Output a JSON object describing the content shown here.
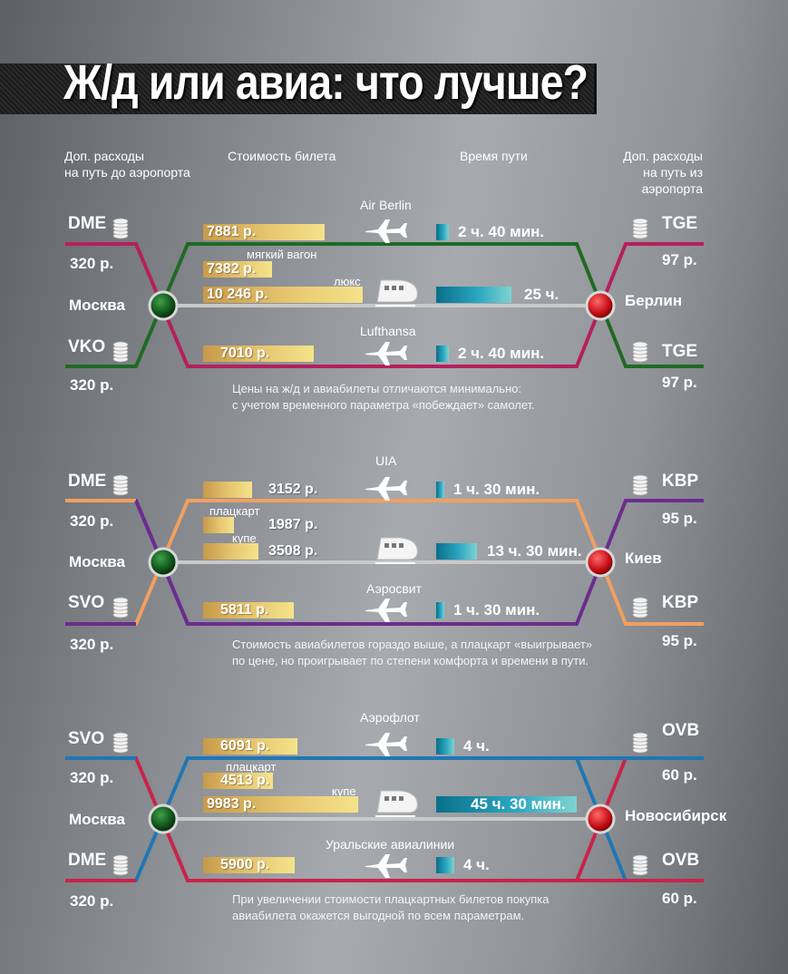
{
  "title": "Ж/д или авиа: что лучше?",
  "headers": {
    "to_airport_1": "Доп. расходы",
    "to_airport_2": "на путь до аэропорта",
    "ticket": "Стоимость билета",
    "time": "Время пути",
    "from_airport_1": "Доп. расходы",
    "from_airport_2": "на путь из аэропорта"
  },
  "colors": {
    "berlin_top": "#b51f5e",
    "berlin_bottom": "#1f6a24",
    "kiev_top": "#f0a060",
    "kiev_bottom": "#6a2d8e",
    "nsk_top": "#1f77b4",
    "nsk_bottom": "#c8234a",
    "rail": "#c9c9c9"
  },
  "sections": [
    {
      "origin": "Москва",
      "destination": "Берлин",
      "top_origin_code": "DME",
      "top_origin_cost": "320 р.",
      "bottom_origin_code": "VKO",
      "bottom_origin_cost": "320 р.",
      "top_dest_code": "TGE",
      "top_dest_cost": "97 р.",
      "bottom_dest_code": "TGE",
      "bottom_dest_cost": "97 р.",
      "top_carrier": "Air Berlin",
      "top_price": "7881 р.",
      "top_time": "2 ч. 40 мин.",
      "rail_class1": "мягкий вагон",
      "rail_price1": "7382 р.",
      "rail_class2": "люкс",
      "rail_price2": "10 246 р.",
      "rail_time": "25 ч.",
      "bottom_carrier": "Lufthansa",
      "bottom_price": "7010 р.",
      "bottom_time": "2 ч. 40 мин.",
      "note1": "Цены на ж/д и авиабилеты отличаются минимально:",
      "note2": "с учетом временного параметра «побеждает» самолет."
    },
    {
      "origin": "Москва",
      "destination": "Киев",
      "top_origin_code": "DME",
      "top_origin_cost": "320 р.",
      "bottom_origin_code": "SVO",
      "bottom_origin_cost": "320 р.",
      "top_dest_code": "KBP",
      "top_dest_cost": "95 р.",
      "bottom_dest_code": "KBP",
      "bottom_dest_cost": "95 р.",
      "top_carrier": "UIA",
      "top_price": "3152 р.",
      "top_time": "1 ч. 30 мин.",
      "rail_class1": "плацкарт",
      "rail_price1": "1987 р.",
      "rail_class2": "купе",
      "rail_price2": "3508 р.",
      "rail_time": "13 ч. 30 мин.",
      "bottom_carrier": "Аэросвит",
      "bottom_price": "5811 р.",
      "bottom_time": "1 ч. 30 мин.",
      "note1": "Стоимость авиабилетов гораздо выше, а плацкарт «выигрывает»",
      "note2": "по цене, но проигрывает по степени комфорта и времени в  пути."
    },
    {
      "origin": "Москва",
      "destination": "Новосибирск",
      "top_origin_code": "SVO",
      "top_origin_cost": "320 р.",
      "bottom_origin_code": "DME",
      "bottom_origin_cost": "320 р.",
      "top_dest_code": "OVB",
      "top_dest_cost": "60 р.",
      "bottom_dest_code": "OVB",
      "bottom_dest_cost": "60 р.",
      "top_carrier": "Аэрофлот",
      "top_price": "6091 р.",
      "top_time": "4 ч.",
      "rail_class1": "плацкарт",
      "rail_price1": "4513 р.",
      "rail_class2": "купе",
      "rail_price2": "9983 р.",
      "rail_time": "45 ч. 30 мин.",
      "bottom_carrier": "Уральские авиалинии",
      "bottom_price": "5900 р.",
      "bottom_time": "4 ч.",
      "note1": "При увеличении стоимости плацкартных билетов покупка",
      "note2": "авиабилета окажется выгодной по всем параметрам."
    }
  ]
}
